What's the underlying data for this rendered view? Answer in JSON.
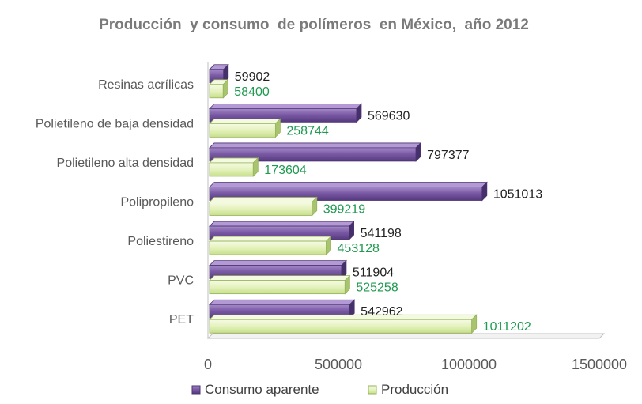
{
  "chart_data": {
    "type": "bar",
    "orientation": "horizontal",
    "title": "Producción  y consumo  de polímeros  en México,  año 2012",
    "categories": [
      "Resinas acrílicas",
      "Polietileno de baja densidad",
      "Polietileno alta densidad",
      "Polipropileno",
      "Poliestireno",
      "PVC",
      "PET"
    ],
    "series": [
      {
        "name": "Consumo aparente",
        "values": [
          59902,
          569630,
          797377,
          1051013,
          541198,
          511904,
          542962
        ],
        "color": "#7b5aa6",
        "label_color": "#222222"
      },
      {
        "name": "Producción",
        "values": [
          58400,
          258744,
          173604,
          399219,
          453128,
          525258,
          1011202
        ],
        "color": "#e8f4c4",
        "label_color": "#1f9a50"
      }
    ],
    "x_ticks": [
      0,
      500000,
      1000000,
      1500000
    ],
    "x_tick_labels": [
      "0",
      "500000",
      "1000000",
      "1500000"
    ],
    "xlim": [
      0,
      1500000
    ],
    "legend_position": "bottom",
    "grid": false
  }
}
